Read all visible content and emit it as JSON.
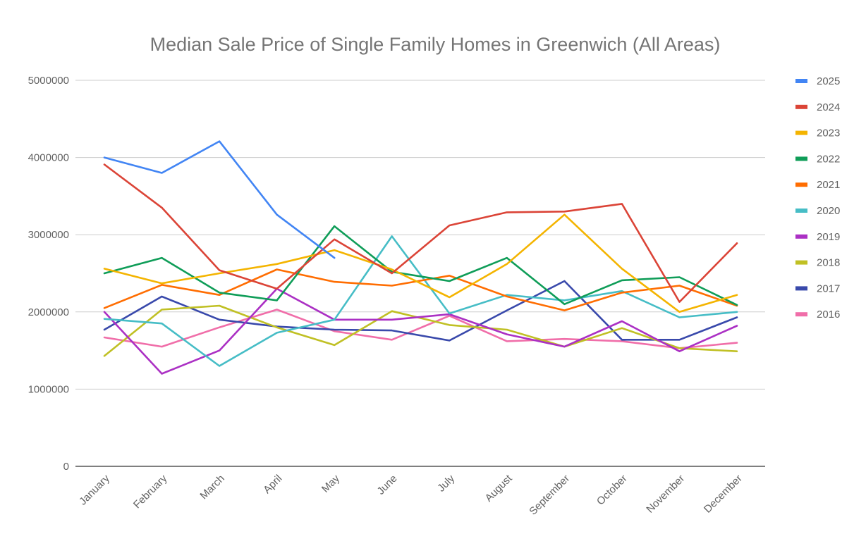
{
  "chart_data": {
    "type": "line",
    "title": "Median Sale Price of Single Family Homes in Greenwich (All Areas)",
    "xlabel": "",
    "ylabel": "",
    "ylim": [
      0,
      5000000
    ],
    "yticks": [
      0,
      1000000,
      2000000,
      3000000,
      4000000,
      5000000
    ],
    "ytick_labels": [
      "0",
      "1000000",
      "2000000",
      "3000000",
      "4000000",
      "5000000"
    ],
    "grid": true,
    "legend_position": "right",
    "categories": [
      "January",
      "February",
      "March",
      "April",
      "May",
      "June",
      "July",
      "August",
      "September",
      "October",
      "November",
      "December"
    ],
    "series": [
      {
        "name": "2025",
        "color": "#4285f4",
        "values": [
          4000000,
          3800000,
          4210000,
          3260000,
          2700000,
          null,
          null,
          null,
          null,
          null,
          null,
          null
        ]
      },
      {
        "name": "2024",
        "color": "#db4437",
        "values": [
          3910000,
          3350000,
          2540000,
          2300000,
          2940000,
          2500000,
          3120000,
          3290000,
          3300000,
          3400000,
          2130000,
          2890000
        ]
      },
      {
        "name": "2023",
        "color": "#f4b400",
        "values": [
          2560000,
          2370000,
          2500000,
          2620000,
          2800000,
          2550000,
          2190000,
          2620000,
          3260000,
          2560000,
          2000000,
          2220000
        ]
      },
      {
        "name": "2022",
        "color": "#0f9d58",
        "values": [
          2500000,
          2700000,
          2250000,
          2150000,
          3110000,
          2520000,
          2400000,
          2700000,
          2100000,
          2410000,
          2450000,
          2090000
        ]
      },
      {
        "name": "2021",
        "color": "#ff6d01",
        "values": [
          2050000,
          2350000,
          2220000,
          2550000,
          2390000,
          2340000,
          2470000,
          2200000,
          2020000,
          2250000,
          2340000,
          2080000
        ]
      },
      {
        "name": "2020",
        "color": "#46bdc6",
        "values": [
          1910000,
          1850000,
          1300000,
          1730000,
          1900000,
          2980000,
          1980000,
          2220000,
          2150000,
          2270000,
          1930000,
          2000000
        ]
      },
      {
        "name": "2019",
        "color": "#ab30c4",
        "values": [
          2000000,
          1200000,
          1500000,
          2300000,
          1900000,
          1900000,
          1970000,
          1710000,
          1550000,
          1880000,
          1490000,
          1820000
        ]
      },
      {
        "name": "2018",
        "color": "#c0c024",
        "values": [
          1430000,
          2030000,
          2080000,
          1800000,
          1570000,
          2010000,
          1830000,
          1770000,
          1550000,
          1790000,
          1530000,
          1490000
        ]
      },
      {
        "name": "2017",
        "color": "#3949ab",
        "values": [
          1770000,
          2200000,
          1900000,
          1810000,
          1770000,
          1760000,
          1630000,
          2020000,
          2400000,
          1640000,
          1640000,
          1930000
        ]
      },
      {
        "name": "2016",
        "color": "#f06ea9",
        "values": [
          1670000,
          1550000,
          1800000,
          2030000,
          1750000,
          1640000,
          1950000,
          1620000,
          1650000,
          1620000,
          1530000,
          1600000
        ]
      }
    ]
  }
}
